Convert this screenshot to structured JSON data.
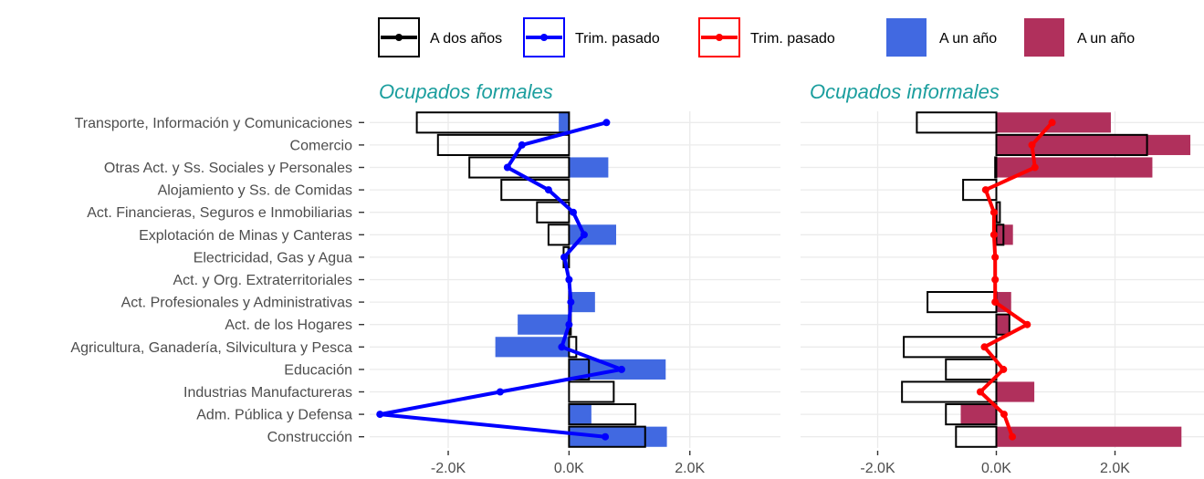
{
  "legend": [
    {
      "label": "A dos años",
      "kind": "bar-outline",
      "color": "#000000"
    },
    {
      "label": "Trim. pasado",
      "kind": "line",
      "color": "#0000ff"
    },
    {
      "label": "Trim. pasado",
      "kind": "line",
      "color": "#ff0000"
    },
    {
      "label": "A un año",
      "kind": "bar-fill",
      "color": "#4169e1"
    },
    {
      "label": "A un año",
      "kind": "bar-fill",
      "color": "#b0305c"
    }
  ],
  "chart_data": [
    {
      "type": "bar",
      "title": "Ocupados formales",
      "categories": [
        "Transporte, Información y Comunicaciones",
        "Comercio",
        "Otras Act. y Ss. Sociales y Personales",
        "Alojamiento y Ss. de Comidas",
        "Act. Financieras, Seguros e Inmobiliarias",
        "Explotación de Minas y Canteras",
        "Electricidad, Gas y Agua",
        "Act. y Org. Extraterritoriales",
        "Act. Profesionales y Administrativas",
        "Act. de los Hogares",
        "Agricultura, Ganadería, Silvicultura y Pesca",
        "Educación",
        "Industrias Manufactureras",
        "Adm. Pública y Defensa",
        "Construcción"
      ],
      "xlim": [
        -3300,
        3500
      ],
      "xticks": [
        -2000,
        0,
        2000
      ],
      "xtick_labels": [
        "-2.0K",
        "0.0K",
        "2.0K"
      ],
      "grid": true,
      "series": [
        {
          "name": "A un año",
          "kind": "bar-fill",
          "color": "#4169e1",
          "values": [
            -170,
            0,
            650,
            0,
            0,
            780,
            -30,
            0,
            430,
            -850,
            -1220,
            1600,
            0,
            370,
            1620
          ]
        },
        {
          "name": "A dos años",
          "kind": "bar-outline",
          "color": "#000000",
          "values": [
            -2520,
            -2170,
            -1650,
            -1120,
            -530,
            -340,
            -90,
            0,
            20,
            30,
            120,
            330,
            740,
            1100,
            1260
          ]
        },
        {
          "name": "Trim. pasado",
          "kind": "line",
          "color": "#0000ff",
          "values": [
            620,
            -780,
            -1020,
            -340,
            70,
            250,
            -80,
            0,
            30,
            0,
            -120,
            870,
            -1140,
            -3130,
            600
          ]
        }
      ]
    },
    {
      "type": "bar",
      "title": "Ocupados informales",
      "categories": [
        "Transporte, Información y Comunicaciones",
        "Comercio",
        "Otras Act. y Ss. Sociales y Personales",
        "Alojamiento y Ss. de Comidas",
        "Act. Financieras, Seguros e Inmobiliarias",
        "Explotación de Minas y Canteras",
        "Electricidad, Gas y Agua",
        "Act. y Org. Extraterritoriales",
        "Act. Profesionales y Administrativas",
        "Act. de los Hogares",
        "Agricultura, Ganadería, Silvicultura y Pesca",
        "Educación",
        "Industrias Manufactureras",
        "Adm. Pública y Defensa",
        "Construcción"
      ],
      "xlim": [
        -3300,
        3500
      ],
      "xticks": [
        -2000,
        0,
        2000
      ],
      "xtick_labels": [
        "-2.0K",
        "0.0K",
        "2.0K"
      ],
      "grid": true,
      "series": [
        {
          "name": "A un año",
          "kind": "bar-fill",
          "color": "#b0305c",
          "values": [
            1930,
            3270,
            2630,
            0,
            30,
            280,
            0,
            0,
            250,
            230,
            0,
            0,
            640,
            -600,
            3120
          ]
        },
        {
          "name": "A dos años",
          "kind": "bar-outline",
          "color": "#000000",
          "values": [
            -1340,
            2540,
            -20,
            -560,
            60,
            120,
            0,
            0,
            -1160,
            220,
            -1560,
            -850,
            -1590,
            -850,
            -680
          ]
        },
        {
          "name": "Trim. pasado",
          "kind": "line",
          "color": "#ff0000",
          "values": [
            940,
            600,
            650,
            -180,
            -40,
            -40,
            -20,
            -20,
            -20,
            520,
            -200,
            120,
            -270,
            130,
            270
          ]
        }
      ]
    }
  ]
}
